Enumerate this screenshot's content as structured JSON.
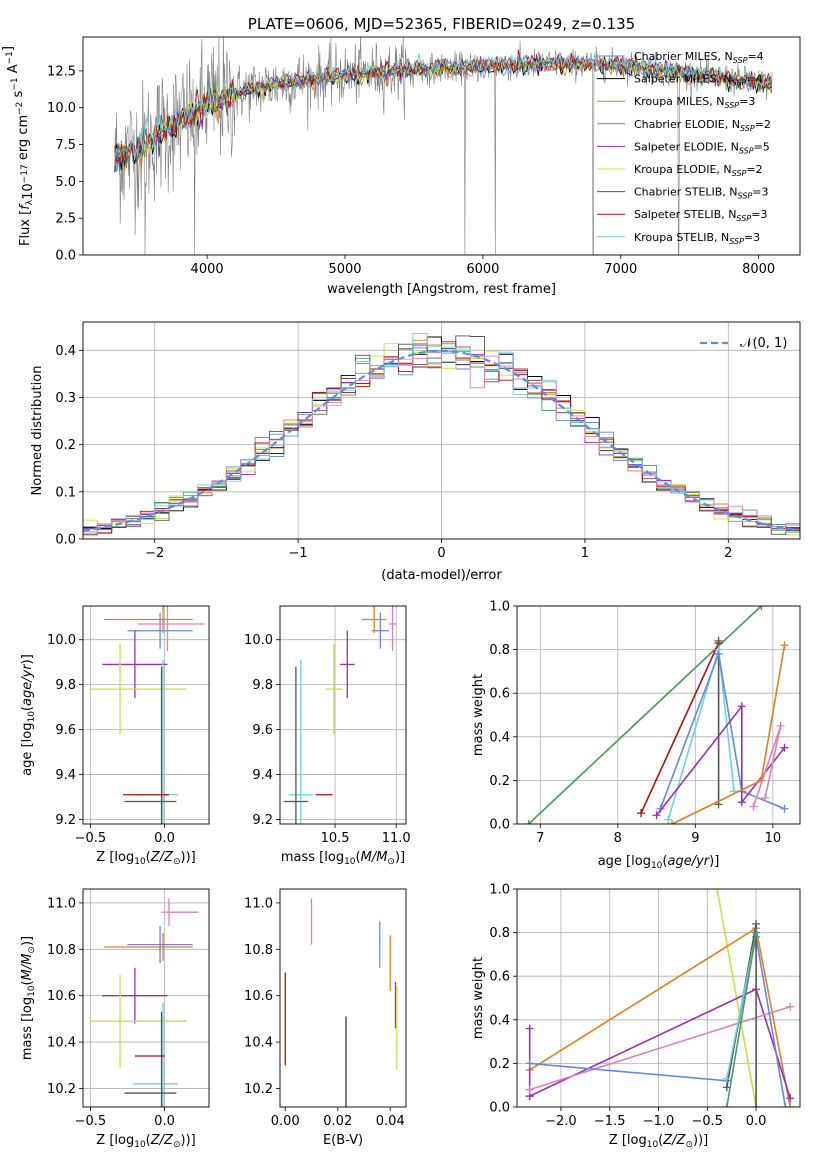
{
  "chart_data": [
    {
      "id": "spectrum",
      "type": "line",
      "title": "PLATE=0606, MJD=52365, FIBERID=0249, z=0.135",
      "xlabel": "wavelength [Angstrom, rest frame]",
      "ylabel": "Flux [f_λ10^−17 erg cm^−2 s^−1 A^−1]",
      "xlim": [
        3100,
        8300
      ],
      "ylim": [
        0,
        14.8
      ],
      "xticks": [
        4000,
        5000,
        6000,
        7000,
        8000
      ],
      "yticks": [
        0.0,
        2.5,
        5.0,
        7.5,
        10.0,
        12.5
      ],
      "ytick_labels": [
        "0.0",
        "2.5",
        "5.0",
        "7.5",
        "10.0",
        "12.5"
      ],
      "legend_position": "upper-right",
      "x_range_data": [
        3330,
        8100
      ],
      "series": [
        {
          "name": "Chabrier MILES, N_SSP=4",
          "color": "#6688dd"
        },
        {
          "name": "Salpeter MILES, N_SSP=4",
          "color": "#000000"
        },
        {
          "name": "Kroupa MILES, N_SSP=3",
          "color": "#e08020"
        },
        {
          "name": "Chabrier ELODIE, N_SSP=2",
          "color": "#4a9a6a"
        },
        {
          "name": "Salpeter ELODIE, N_SSP=5",
          "color": "#9a30b0"
        },
        {
          "name": "Kroupa ELODIE, N_SSP=2",
          "color": "#c8e040"
        },
        {
          "name": "Chabrier STELIB, N_SSP=3",
          "color": "#555555"
        },
        {
          "name": "Salpeter STELIB, N_SSP=3",
          "color": "#aa1010"
        },
        {
          "name": "Kroupa STELIB, N_SSP=3",
          "color": "#70d0e0"
        }
      ],
      "continuum": [
        [
          3330,
          6.5
        ],
        [
          3500,
          7.2
        ],
        [
          3700,
          8.6
        ],
        [
          3900,
          9.5
        ],
        [
          4000,
          10.3
        ],
        [
          4300,
          11.2
        ],
        [
          4600,
          11.8
        ],
        [
          5000,
          12.2
        ],
        [
          5500,
          12.6
        ],
        [
          6000,
          12.8
        ],
        [
          6500,
          13.0
        ],
        [
          7000,
          12.9
        ],
        [
          7500,
          12.3
        ],
        [
          8000,
          11.7
        ],
        [
          8100,
          11.5
        ]
      ],
      "spikes": [
        [
          3550,
          0
        ],
        [
          3910,
          0
        ],
        [
          5870,
          0
        ],
        [
          6090,
          0
        ],
        [
          6800,
          0
        ],
        [
          7420,
          0
        ]
      ]
    },
    {
      "id": "residuals",
      "type": "line",
      "xlabel": "(data-model)/error",
      "ylabel": "Normed distribution",
      "xlim": [
        -2.5,
        2.5
      ],
      "ylim": [
        0,
        0.46
      ],
      "xticks": [
        -2,
        -1,
        0,
        1,
        2
      ],
      "xtick_labels": [
        "−2",
        "−1",
        "0",
        "1",
        "2"
      ],
      "yticks": [
        0.0,
        0.1,
        0.2,
        0.3,
        0.4
      ],
      "ytick_labels": [
        "0.0",
        "0.1",
        "0.2",
        "0.3",
        "0.4"
      ],
      "grid": true,
      "legend": {
        "label": "𝒩(0, 1)",
        "position": "upper-right",
        "color": "#5b8fd8"
      },
      "bin_width": 0.1
    },
    {
      "id": "age-vs-Z",
      "type": "scatter",
      "xlabel": "Z [log10(Z/Z⊙)]",
      "ylabel": "age  [log10(age/yr)]",
      "xlim": [
        -0.55,
        0.3
      ],
      "ylim": [
        9.18,
        10.15
      ],
      "xticks": [
        -0.5,
        0.0
      ],
      "xtick_labels": [
        "−0.5",
        "0.0"
      ],
      "yticks": [
        9.2,
        9.4,
        9.6,
        9.8,
        10.0
      ],
      "ytick_labels": [
        "9.2",
        "9.4",
        "9.6",
        "9.8",
        "10.0"
      ],
      "grid": true,
      "points": [
        {
          "x": -0.03,
          "y": 10.04,
          "xerr": [
            0.22,
            0.22
          ],
          "yerr": [
            0.08,
            0.08
          ],
          "color": "#6688dd"
        },
        {
          "x": -0.01,
          "y": 10.09,
          "xerr": [
            0.4,
            0.2
          ],
          "yerr": [
            0.06,
            0.06
          ],
          "color": "#e08020"
        },
        {
          "x": 0.02,
          "y": 10.07,
          "xerr": [
            0.2,
            0.25
          ],
          "yerr": [
            0.12,
            0.12
          ],
          "color": "#e080b8"
        },
        {
          "x": -0.2,
          "y": 9.89,
          "xerr": [
            0.22,
            0.22
          ],
          "yerr": [
            0.15,
            0.15
          ],
          "color": "#9a30b0"
        },
        {
          "x": -0.3,
          "y": 9.78,
          "xerr": [
            0.2,
            0.45
          ],
          "yerr": [
            0.2,
            0.2
          ],
          "color": "#c8e040"
        },
        {
          "x": -0.01,
          "y": 9.31,
          "xerr": [
            0.2,
            0.1
          ],
          "yerr": [
            0.6,
            0.6
          ],
          "color": "#70d0e0"
        },
        {
          "x": -0.02,
          "y": 9.28,
          "xerr": [
            0.25,
            0.1
          ],
          "yerr": [
            0.6,
            0.6
          ],
          "color": "#555555"
        },
        {
          "x": -0.27,
          "y": 9.31,
          "xerr": [
            0.01,
            0.3
          ],
          "yerr": [
            0.0,
            0.0
          ],
          "color": "#aa1010"
        }
      ]
    },
    {
      "id": "age-vs-mass",
      "type": "scatter",
      "xlabel": "mass [log10(M/M⊙)]",
      "ylabel": "",
      "xlim": [
        10.05,
        11.08
      ],
      "ylim": [
        9.18,
        10.15
      ],
      "xticks": [
        10.5,
        11.0
      ],
      "xtick_labels": [
        "10.5",
        "11.0"
      ],
      "yticks": [
        9.2,
        9.4,
        9.6,
        9.8,
        10.0
      ],
      "ytick_labels": [
        "9.2",
        "9.4",
        "9.6",
        "9.8",
        "10.0"
      ],
      "grid": true,
      "points": [
        {
          "x": 10.87,
          "y": 10.04,
          "xerr": [
            0.07,
            0.07
          ],
          "yerr": [
            0.08,
            0.08
          ],
          "color": "#6688dd"
        },
        {
          "x": 10.82,
          "y": 10.09,
          "xerr": [
            0.1,
            0.1
          ],
          "yerr": [
            0.06,
            0.06
          ],
          "color": "#e08020"
        },
        {
          "x": 10.97,
          "y": 10.07,
          "xerr": [
            0.03,
            0.03
          ],
          "yerr": [
            0.12,
            0.12
          ],
          "color": "#e080b8"
        },
        {
          "x": 10.6,
          "y": 9.89,
          "xerr": [
            0.06,
            0.06
          ],
          "yerr": [
            0.15,
            0.15
          ],
          "color": "#9a30b0"
        },
        {
          "x": 10.49,
          "y": 9.78,
          "xerr": [
            0.07,
            0.07
          ],
          "yerr": [
            0.2,
            0.2
          ],
          "color": "#c8e040"
        },
        {
          "x": 10.22,
          "y": 9.31,
          "xerr": [
            0.1,
            0.1
          ],
          "yerr": [
            0.6,
            0.6
          ],
          "color": "#70d0e0"
        },
        {
          "x": 10.18,
          "y": 9.28,
          "xerr": [
            0.1,
            0.1
          ],
          "yerr": [
            0.6,
            0.6
          ],
          "color": "#555555"
        },
        {
          "x": 10.34,
          "y": 9.31,
          "xerr": [
            0.0,
            0.14
          ],
          "yerr": [
            0.0,
            0.0
          ],
          "color": "#aa1010"
        }
      ]
    },
    {
      "id": "weight-vs-age",
      "type": "line",
      "xlabel": "age  [log10(age/yr)]",
      "ylabel": "mass weight",
      "xlim": [
        6.7,
        10.35
      ],
      "ylim": [
        0,
        1.0
      ],
      "xticks": [
        7,
        8,
        9,
        10
      ],
      "xtick_labels": [
        "7",
        "8",
        "9",
        "10"
      ],
      "yticks": [
        0.0,
        0.2,
        0.4,
        0.6,
        0.8,
        1.0
      ],
      "ytick_labels": [
        "0.0",
        "0.2",
        "0.4",
        "0.6",
        "0.8",
        "1.0"
      ],
      "grid": true,
      "series": [
        {
          "color": "#c8e040",
          "points": [
            [
              6.85,
              0
            ],
            [
              9.85,
              1.0
            ]
          ]
        },
        {
          "color": "#4a9a6a",
          "points": [
            [
              6.85,
              0
            ],
            [
              9.85,
              1.0
            ]
          ]
        },
        {
          "color": "#aa1010",
          "points": [
            [
              8.3,
              0.05
            ],
            [
              9.3,
              0.83
            ]
          ]
        },
        {
          "color": "#555555",
          "points": [
            [
              9.3,
              0.09
            ],
            [
              9.3,
              0.84
            ]
          ]
        },
        {
          "color": "#70d0e0",
          "points": [
            [
              8.65,
              0.02
            ],
            [
              9.3,
              0.8
            ],
            [
              9.5,
              0.15
            ]
          ]
        },
        {
          "color": "#6688dd",
          "points": [
            [
              8.55,
              0.07
            ],
            [
              9.3,
              0.78
            ],
            [
              9.6,
              0.15
            ],
            [
              10.15,
              0.07
            ]
          ]
        },
        {
          "color": "#9a30b0",
          "points": [
            [
              8.5,
              0.04
            ],
            [
              9.6,
              0.54
            ],
            [
              9.6,
              0.1
            ],
            [
              10.15,
              0.35
            ]
          ]
        },
        {
          "color": "#e08020",
          "points": [
            [
              8.7,
              0.0
            ],
            [
              9.85,
              0.2
            ],
            [
              10.15,
              0.82
            ]
          ]
        },
        {
          "color": "#e080b8",
          "points": [
            [
              9.75,
              0.08
            ],
            [
              10.1,
              0.45
            ],
            [
              9.9,
              0.12
            ]
          ]
        }
      ]
    },
    {
      "id": "mass-vs-Z",
      "type": "scatter",
      "xlabel": "Z [log10(Z/Z⊙)]",
      "ylabel": "mass [log10(M/M⊙)]",
      "xlim": [
        -0.55,
        0.3
      ],
      "ylim": [
        10.12,
        11.06
      ],
      "xticks": [
        -0.5,
        0.0
      ],
      "xtick_labels": [
        "−0.5",
        "0.0"
      ],
      "yticks": [
        10.2,
        10.4,
        10.6,
        10.8,
        11.0
      ],
      "ytick_labels": [
        "10.2",
        "10.4",
        "10.6",
        "10.8",
        "11.0"
      ],
      "grid": true,
      "points": [
        {
          "x": -0.03,
          "y": 10.82,
          "xerr": [
            0.22,
            0.22
          ],
          "yerr": [
            0.08,
            0.08
          ],
          "color": "#6688dd"
        },
        {
          "x": -0.01,
          "y": 10.81,
          "xerr": [
            0.4,
            0.2
          ],
          "yerr": [
            0.06,
            0.06
          ],
          "color": "#e08020"
        },
        {
          "x": 0.03,
          "y": 10.96,
          "xerr": [
            0.05,
            0.2
          ],
          "yerr": [
            0.06,
            0.06
          ],
          "color": "#e080b8"
        },
        {
          "x": -0.2,
          "y": 10.6,
          "xerr": [
            0.22,
            0.22
          ],
          "yerr": [
            0.12,
            0.12
          ],
          "color": "#9a30b0"
        },
        {
          "x": -0.3,
          "y": 10.49,
          "xerr": [
            0.2,
            0.45
          ],
          "yerr": [
            0.2,
            0.2
          ],
          "color": "#c8e040"
        },
        {
          "x": -0.01,
          "y": 10.22,
          "xerr": [
            0.2,
            0.1
          ],
          "yerr": [
            0.35,
            0.35
          ],
          "color": "#70d0e0"
        },
        {
          "x": -0.02,
          "y": 10.18,
          "xerr": [
            0.25,
            0.1
          ],
          "yerr": [
            0.35,
            0.35
          ],
          "color": "#555555"
        },
        {
          "x": -0.1,
          "y": 10.34,
          "xerr": [
            0.1,
            0.1
          ],
          "yerr": [
            0.0,
            0.0
          ],
          "color": "#aa1010"
        }
      ]
    },
    {
      "id": "mass-vs-ebv",
      "type": "scatter",
      "xlabel": "E(B-V)",
      "ylabel": "",
      "xlim": [
        -0.002,
        0.046
      ],
      "ylim": [
        10.12,
        11.06
      ],
      "xticks": [
        0.0,
        0.02,
        0.04
      ],
      "xtick_labels": [
        "0.00",
        "0.02",
        "0.04"
      ],
      "yticks": [
        10.2,
        10.4,
        10.6,
        10.8,
        11.0
      ],
      "ytick_labels": [
        "10.2",
        "10.4",
        "10.6",
        "10.8",
        "11.0"
      ],
      "grid": false,
      "points": [
        {
          "x": 0.0,
          "y": 10.5,
          "xerr": [
            0,
            0
          ],
          "yerr": [
            0.2,
            0.2
          ],
          "color": "#aa1010"
        },
        {
          "x": 0.01,
          "y": 10.92,
          "xerr": [
            0,
            0
          ],
          "yerr": [
            0.1,
            0.1
          ],
          "color": "#e080b8"
        },
        {
          "x": 0.023,
          "y": 10.31,
          "xerr": [
            0,
            0
          ],
          "yerr": [
            0.2,
            0.2
          ],
          "color": "#70d0e0"
        },
        {
          "x": 0.0232,
          "y": 10.31,
          "xerr": [
            0,
            0
          ],
          "yerr": [
            0.2,
            0.2
          ],
          "color": "#555555"
        },
        {
          "x": 0.036,
          "y": 10.82,
          "xerr": [
            0,
            0
          ],
          "yerr": [
            0.1,
            0.1
          ],
          "color": "#6688dd"
        },
        {
          "x": 0.04,
          "y": 10.74,
          "xerr": [
            0,
            0
          ],
          "yerr": [
            0.12,
            0.12
          ],
          "color": "#e08020"
        },
        {
          "x": 0.042,
          "y": 10.56,
          "xerr": [
            0,
            0
          ],
          "yerr": [
            0.1,
            0.1
          ],
          "color": "#9a30b0"
        },
        {
          "x": 0.0425,
          "y": 10.46,
          "xerr": [
            0,
            0
          ],
          "yerr": [
            0.18,
            0.18
          ],
          "color": "#c8e040"
        }
      ]
    },
    {
      "id": "weight-vs-Z",
      "type": "line",
      "xlabel": "Z [log10(Z/Z⊙)]",
      "ylabel": "mass weight",
      "xlim": [
        -2.45,
        0.45
      ],
      "ylim": [
        0,
        1.0
      ],
      "xticks": [
        -2.0,
        -1.5,
        -1.0,
        -0.5,
        0.0
      ],
      "xtick_labels": [
        "−2.0",
        "−1.5",
        "−1.0",
        "−0.5",
        "0.0"
      ],
      "yticks": [
        0.0,
        0.2,
        0.4,
        0.6,
        0.8,
        1.0
      ],
      "ytick_labels": [
        "0.0",
        "0.2",
        "0.4",
        "0.6",
        "0.8",
        "1.0"
      ],
      "grid": true,
      "series": [
        {
          "color": "#c8e040",
          "points": [
            [
              -0.4,
              1.0
            ],
            [
              0.0,
              0.0
            ]
          ]
        },
        {
          "color": "#e08020",
          "points": [
            [
              -2.32,
              0.17
            ],
            [
              0.0,
              0.82
            ],
            [
              0.35,
              0.0
            ]
          ]
        },
        {
          "color": "#9a30b0",
          "points": [
            [
              -2.32,
              0.05
            ],
            [
              -2.32,
              0.36
            ],
            [
              -2.32,
              0.05
            ],
            [
              0.0,
              0.54
            ],
            [
              0.35,
              0.04
            ]
          ]
        },
        {
          "color": "#e080b8",
          "points": [
            [
              -2.32,
              0.08
            ],
            [
              0.35,
              0.46
            ]
          ]
        },
        {
          "color": "#6688dd",
          "points": [
            [
              -2.32,
              0.2
            ],
            [
              -0.3,
              0.12
            ],
            [
              0.0,
              0.78
            ],
            [
              0.3,
              0.0
            ]
          ]
        },
        {
          "color": "#555555",
          "points": [
            [
              -0.3,
              0.09
            ],
            [
              0.0,
              0.84
            ],
            [
              0.0,
              0.0
            ]
          ]
        },
        {
          "color": "#70d0e0",
          "points": [
            [
              -0.3,
              0.13
            ],
            [
              0.0,
              0.8
            ]
          ]
        },
        {
          "color": "#4a9a6a",
          "points": [
            [
              -0.3,
              0.0
            ],
            [
              0.0,
              0.8
            ]
          ]
        }
      ]
    }
  ]
}
